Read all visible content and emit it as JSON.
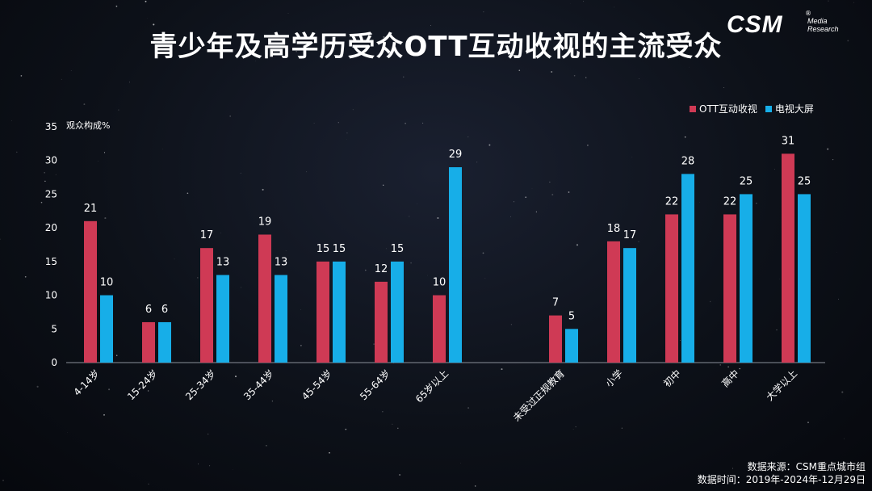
{
  "title": "青少年及高学历受众OTT互动收视的主流受众",
  "logo": {
    "text": "CSM",
    "sub1": "Media",
    "sub2": "Research"
  },
  "legend": [
    {
      "name": "OTT互动收视",
      "color": "#cf3a55"
    },
    {
      "name": "电视大屏",
      "color": "#17aee8"
    }
  ],
  "source": {
    "line1": "数据来源：CSM重点城市组",
    "line2": "数据时间：2019年-2024年-12月29日"
  },
  "chart_data": {
    "type": "bar",
    "ylabel": "观众构成%",
    "ylim": [
      0,
      35
    ],
    "yticks": [
      0,
      5,
      10,
      15,
      20,
      25,
      30,
      35
    ],
    "grid": false,
    "legend_position": "top-right",
    "categories": [
      "4-14岁",
      "15-24岁",
      "25-34岁",
      "35-44岁",
      "45-54岁",
      "55-64岁",
      "65岁以上",
      "未受过正规教育",
      "小学",
      "初中",
      "高中",
      "大学以上"
    ],
    "series": [
      {
        "name": "OTT互动收视",
        "values": [
          21,
          6,
          17,
          19,
          15,
          12,
          10,
          7,
          18,
          22,
          22,
          31
        ]
      },
      {
        "name": "电视大屏",
        "values": [
          10,
          6,
          13,
          13,
          15,
          15,
          29,
          5,
          17,
          28,
          25,
          25
        ]
      }
    ]
  }
}
